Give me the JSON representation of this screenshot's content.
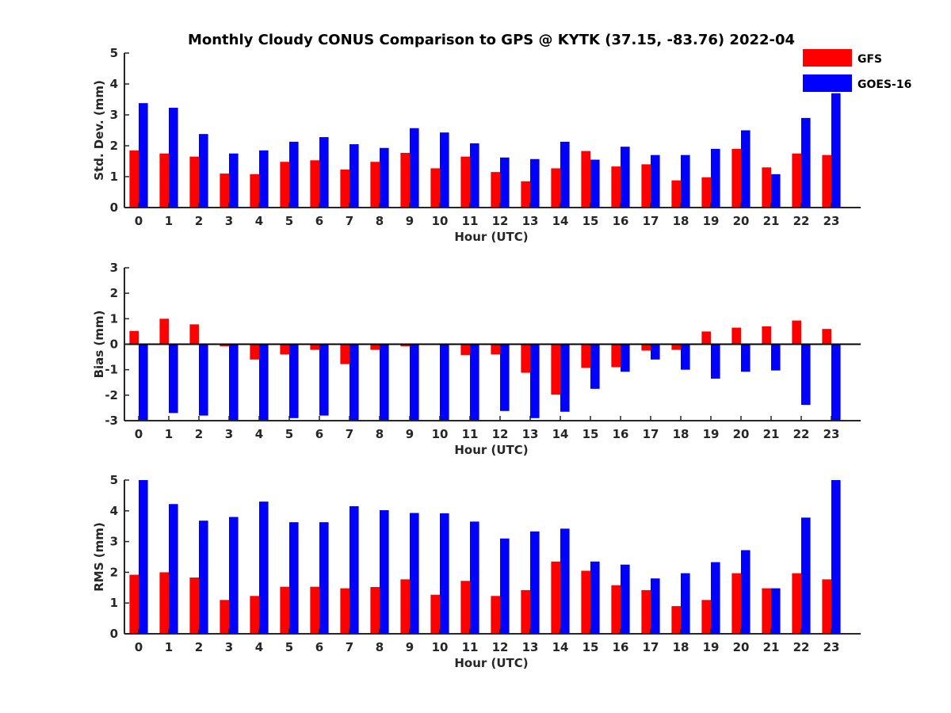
{
  "figure": {
    "title": "Monthly Cloudy CONUS Comparison to GPS @ KYTK (37.15, -83.76) 2022-04"
  },
  "legend": {
    "placement": "top-right",
    "items": [
      {
        "label": "GFS",
        "color": "#ff0000"
      },
      {
        "label": "GOES-16",
        "color": "#0000ff"
      }
    ]
  },
  "chart_data": [
    {
      "type": "bar",
      "id": "std",
      "xlabel": "Hour (UTC)",
      "ylabel": "Std. Dev. (mm)",
      "ylim": [
        0,
        5
      ],
      "yticks": [
        0,
        1,
        2,
        3,
        4,
        5
      ],
      "categories": [
        "0",
        "1",
        "2",
        "3",
        "4",
        "5",
        "6",
        "7",
        "8",
        "9",
        "10",
        "11",
        "12",
        "13",
        "14",
        "15",
        "16",
        "17",
        "18",
        "19",
        "20",
        "21",
        "22",
        "23"
      ],
      "series": [
        {
          "name": "GFS",
          "color": "#ff0000",
          "values": [
            1.85,
            1.75,
            1.65,
            1.1,
            1.08,
            1.48,
            1.53,
            1.23,
            1.48,
            1.77,
            1.27,
            1.65,
            1.15,
            0.85,
            1.27,
            1.83,
            1.33,
            1.4,
            0.88,
            0.98,
            1.9,
            1.3,
            1.75,
            1.7
          ]
        },
        {
          "name": "GOES-16",
          "color": "#0000ff",
          "values": [
            3.38,
            3.23,
            2.38,
            1.75,
            1.85,
            2.13,
            2.28,
            2.05,
            1.93,
            2.57,
            2.43,
            2.08,
            1.62,
            1.57,
            2.13,
            1.55,
            1.97,
            1.7,
            1.7,
            1.9,
            2.5,
            1.08,
            2.9,
            3.7
          ]
        }
      ]
    },
    {
      "type": "bar",
      "id": "bias",
      "xlabel": "Hour (UTC)",
      "ylabel": "Bias (mm)",
      "ylim": [
        -3,
        3
      ],
      "yticks": [
        -3,
        -2,
        -1,
        0,
        1,
        2,
        3
      ],
      "categories": [
        "0",
        "1",
        "2",
        "3",
        "4",
        "5",
        "6",
        "7",
        "8",
        "9",
        "10",
        "11",
        "12",
        "13",
        "14",
        "15",
        "16",
        "17",
        "18",
        "19",
        "20",
        "21",
        "22",
        "23"
      ],
      "series": [
        {
          "name": "GFS",
          "color": "#ff0000",
          "values": [
            0.52,
            1.0,
            0.78,
            -0.08,
            -0.6,
            -0.4,
            -0.22,
            -0.78,
            -0.22,
            -0.08,
            -0.03,
            -0.43,
            -0.4,
            -1.12,
            -1.98,
            -0.93,
            -0.9,
            -0.25,
            -0.22,
            0.5,
            0.65,
            0.7,
            0.93,
            0.6
          ]
        },
        {
          "name": "GOES-16",
          "color": "#0000ff",
          "values": [
            -3.0,
            -2.7,
            -2.8,
            -3.0,
            -3.0,
            -2.9,
            -2.8,
            -3.0,
            -3.0,
            -3.0,
            -3.0,
            -3.0,
            -2.62,
            -2.9,
            -2.65,
            -1.75,
            -1.08,
            -0.6,
            -1.0,
            -1.35,
            -1.08,
            -1.03,
            -2.38,
            -3.0
          ]
        }
      ]
    },
    {
      "type": "bar",
      "id": "rms",
      "xlabel": "Hour (UTC)",
      "ylabel": "RMS (mm)",
      "ylim": [
        0,
        5
      ],
      "yticks": [
        0,
        1,
        2,
        3,
        4,
        5
      ],
      "categories": [
        "0",
        "1",
        "2",
        "3",
        "4",
        "5",
        "6",
        "7",
        "8",
        "9",
        "10",
        "11",
        "12",
        "13",
        "14",
        "15",
        "16",
        "17",
        "18",
        "19",
        "20",
        "21",
        "22",
        "23"
      ],
      "series": [
        {
          "name": "GFS",
          "color": "#ff0000",
          "values": [
            1.92,
            2.0,
            1.83,
            1.1,
            1.23,
            1.53,
            1.53,
            1.48,
            1.52,
            1.77,
            1.27,
            1.72,
            1.23,
            1.42,
            2.35,
            2.05,
            1.58,
            1.42,
            0.9,
            1.1,
            1.97,
            1.48,
            1.97,
            1.77
          ]
        },
        {
          "name": "GOES-16",
          "color": "#0000ff",
          "values": [
            5.0,
            4.22,
            3.68,
            3.8,
            4.3,
            3.63,
            3.63,
            4.15,
            4.02,
            3.93,
            3.92,
            3.65,
            3.1,
            3.33,
            3.42,
            2.35,
            2.25,
            1.8,
            1.97,
            2.33,
            2.72,
            1.48,
            3.78,
            5.0
          ]
        }
      ]
    }
  ]
}
